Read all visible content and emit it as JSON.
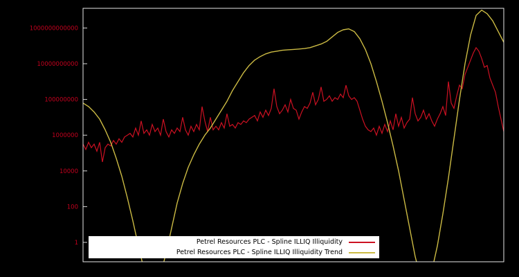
{
  "chart_data": {
    "type": "line",
    "title": "",
    "xlabel": "",
    "ylabel": "",
    "y_scale": "log10",
    "ylim_log": [
      -1.1,
      13.1
    ],
    "grid": false,
    "legend_position": "bottom-center",
    "background_color": "#000000",
    "yticks": [
      {
        "label": "1000000000000",
        "log": 12
      },
      {
        "label": "10000000000",
        "log": 10
      },
      {
        "label": "100000000",
        "log": 8
      },
      {
        "label": "1000000",
        "log": 6
      },
      {
        "label": "10000",
        "log": 4
      },
      {
        "label": "100",
        "log": 2
      },
      {
        "label": "1",
        "log": 0
      }
    ],
    "series": [
      {
        "name": "Petrel Resources PLC - Spline ILLIQ Illiquidity",
        "color": "#cc1122",
        "style": "jagged",
        "log_values": [
          5.5,
          5.2,
          5.6,
          5.3,
          5.5,
          5.1,
          5.6,
          4.5,
          5.3,
          5.5,
          5.4,
          5.7,
          5.5,
          5.8,
          5.6,
          5.9,
          6.0,
          6.1,
          5.9,
          6.4,
          6.0,
          6.8,
          6.1,
          6.3,
          6.0,
          6.6,
          6.2,
          6.4,
          6.0,
          6.9,
          6.2,
          5.9,
          6.3,
          6.1,
          6.4,
          6.2,
          7.0,
          6.3,
          6.0,
          6.5,
          6.2,
          6.6,
          6.3,
          7.6,
          6.8,
          6.2,
          7.0,
          6.3,
          6.5,
          6.3,
          6.7,
          6.4,
          7.2,
          6.5,
          6.6,
          6.4,
          6.7,
          6.6,
          6.8,
          6.7,
          6.9,
          7.0,
          7.1,
          6.8,
          7.3,
          7.0,
          7.4,
          7.1,
          7.5,
          8.6,
          7.6,
          7.2,
          7.4,
          7.7,
          7.3,
          8.0,
          7.5,
          7.4,
          6.9,
          7.3,
          7.6,
          7.5,
          7.8,
          8.4,
          7.7,
          8.0,
          8.7,
          7.9,
          8.0,
          8.2,
          7.9,
          8.1,
          8.0,
          8.3,
          8.1,
          8.8,
          8.2,
          8.0,
          8.1,
          7.9,
          7.4,
          6.9,
          6.5,
          6.3,
          6.2,
          6.4,
          6.0,
          6.5,
          6.1,
          6.6,
          6.2,
          6.8,
          6.3,
          7.2,
          6.5,
          7.0,
          6.4,
          6.7,
          6.9,
          8.1,
          7.2,
          6.8,
          7.0,
          7.4,
          6.9,
          7.2,
          6.8,
          6.5,
          6.9,
          7.2,
          7.6,
          7.1,
          9.0,
          7.8,
          7.5,
          8.2,
          8.8,
          8.6,
          9.4,
          9.8,
          10.2,
          10.6,
          10.9,
          10.7,
          10.3,
          9.8,
          9.9,
          9.2,
          8.8,
          8.4,
          7.6,
          6.9,
          6.2
        ]
      },
      {
        "name": "Petrel Resources PLC - Spline ILLIQ Illiquidity Trend",
        "color": "#ccbb44",
        "style": "smooth",
        "log_values": [
          7.8,
          7.6,
          7.3,
          6.9,
          6.3,
          5.6,
          4.7,
          3.7,
          2.5,
          1.2,
          -0.2,
          -1.5,
          -2.3,
          -2.5,
          -1.8,
          -0.6,
          0.8,
          2.2,
          3.3,
          4.2,
          4.9,
          5.5,
          6.0,
          6.4,
          6.9,
          7.4,
          7.9,
          8.5,
          9.0,
          9.5,
          9.9,
          10.2,
          10.4,
          10.55,
          10.65,
          10.7,
          10.75,
          10.78,
          10.8,
          10.82,
          10.85,
          10.9,
          11.0,
          11.1,
          11.25,
          11.5,
          11.75,
          11.9,
          11.95,
          11.8,
          11.4,
          10.8,
          10.0,
          9.0,
          7.9,
          6.7,
          5.4,
          4.0,
          2.4,
          0.8,
          -0.8,
          -2.0,
          -2.4,
          -1.6,
          -0.2,
          1.6,
          3.6,
          5.8,
          8.0,
          10.0,
          11.6,
          12.7,
          13.0,
          12.8,
          12.4,
          11.8,
          11.2
        ]
      }
    ]
  }
}
